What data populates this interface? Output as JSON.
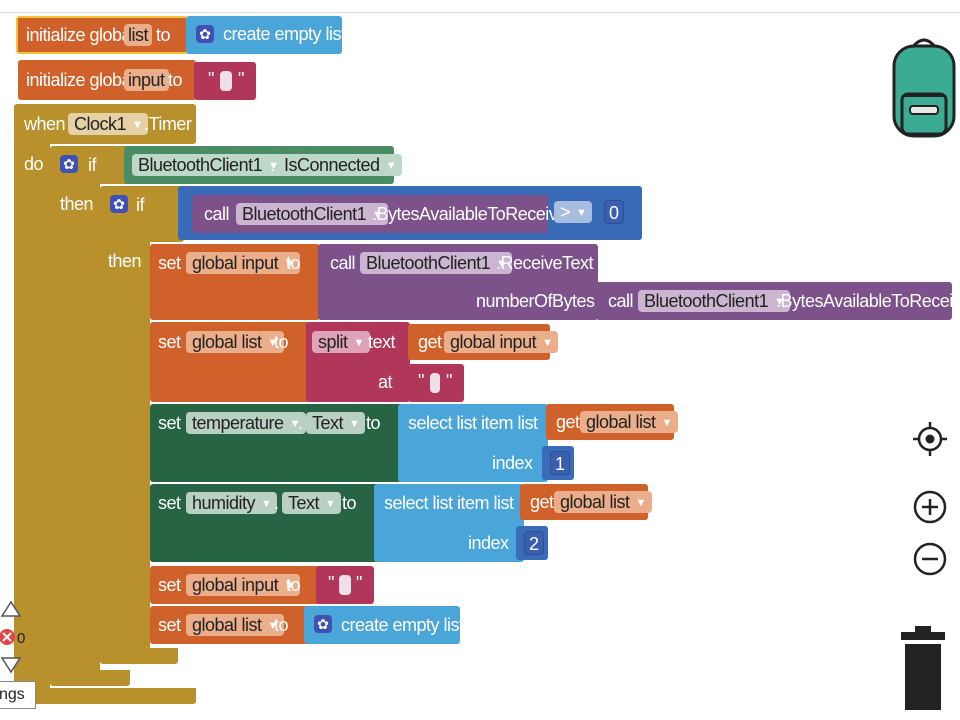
{
  "canvas": {
    "title": ""
  },
  "colors": {
    "variables": "#d0612a",
    "lists": "#4aa5d8",
    "text": "#b0365a",
    "control": "#b8902c",
    "component_events": "#4a8d64",
    "bluetooth": "#7d5189",
    "math": "#3a6bb8",
    "components_set": "#276444"
  },
  "blocks": {
    "init_list": {
      "kw1": "initialize global",
      "name": "list",
      "kw2": "to",
      "create": "create empty list"
    },
    "init_input": {
      "kw1": "initialize global",
      "name": "input",
      "kw2": "to",
      "str_q1": "\"",
      "str_q2": "\""
    },
    "when": {
      "kw": "when",
      "component": "Clock1",
      "event": ".Timer",
      "do": "do"
    },
    "if1": {
      "kw": "if",
      "then": "then",
      "component": "BluetoothClient1",
      "dot": ".",
      "property": "IsConnected"
    },
    "if2": {
      "kw": "if",
      "then": "then",
      "call": "call",
      "component": "BluetoothClient1",
      "method": ".BytesAvailableToReceive",
      "op": ">",
      "value": "0"
    },
    "set_input": {
      "kw": "set",
      "var": "global input",
      "to": "to",
      "call": "call",
      "component": "BluetoothClient1",
      "method": ".ReceiveText",
      "param": "numberOfBytes",
      "call2": "call",
      "component2": "BluetoothClient1",
      "method2": ".BytesAvailableToReceive"
    },
    "set_list": {
      "kw": "set",
      "var": "global list",
      "to": "to",
      "split": "split",
      "text_lbl": "text",
      "get": "get",
      "getvar": "global input",
      "at": "at",
      "q1": "\"",
      "q2": "\""
    },
    "set_temp": {
      "kw": "set",
      "component": "temperature",
      "dot": ".",
      "prop": "Text",
      "to": "to",
      "select": "select list item  list",
      "get": "get",
      "getvar": "global list",
      "index_lbl": "index",
      "index": "1"
    },
    "set_hum": {
      "kw": "set",
      "component": "humidity",
      "dot": ".",
      "prop": "Text",
      "to": "to",
      "select": "select list item  list",
      "get": "get",
      "getvar": "global list",
      "index_lbl": "index",
      "index": "2"
    },
    "reset_input": {
      "kw": "set",
      "var": "global input",
      "to": "to",
      "q1": "\"",
      "q2": "\""
    },
    "reset_list": {
      "kw": "set",
      "var": "global list",
      "to": "to",
      "create": "create empty list"
    }
  },
  "warnings": {
    "count": "0",
    "label": "ngs"
  },
  "icons": {
    "backpack": "backpack-icon",
    "target": "target-icon",
    "zoom_in": "zoom-in-icon",
    "zoom_out": "zoom-out-icon",
    "trash": "trash-icon",
    "gear": "gear-icon"
  }
}
